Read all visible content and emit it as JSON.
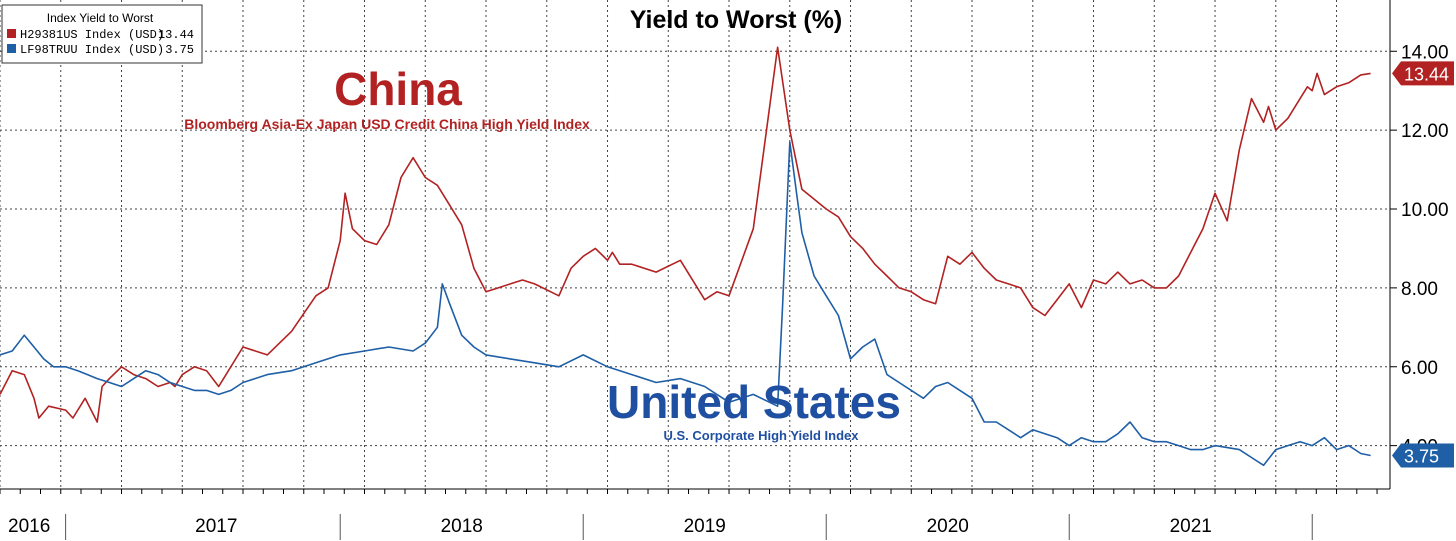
{
  "chart_data": {
    "type": "line",
    "title": "Yield to Worst (%)",
    "legend_title": "Index Yield to Worst",
    "legend_position": "top-left",
    "ylim": [
      2.9,
      15.3
    ],
    "y_ticks": [
      {
        "value": 14,
        "label": "14.00"
      },
      {
        "value": 12,
        "label": "12.00"
      },
      {
        "value": 10,
        "label": "10.00"
      },
      {
        "value": 8,
        "label": "8.00"
      },
      {
        "value": 6,
        "label": "6.00"
      },
      {
        "value": 4,
        "label": "4.00"
      }
    ],
    "xlim": [
      2016.0,
      2021.72
    ],
    "year_labels": [
      {
        "label": "2016",
        "center": 2016.12
      },
      {
        "label": "2017",
        "center": 2016.89
      },
      {
        "label": "2018",
        "center": 2017.9
      },
      {
        "label": "2019",
        "center": 2018.9
      },
      {
        "label": "2020",
        "center": 2019.9
      },
      {
        "label": "2021",
        "center": 2020.9
      }
    ],
    "year_boundaries": [
      2016.27,
      2017.4,
      2018.4,
      2019.4,
      2020.4,
      2021.4
    ],
    "grid": true,
    "series": [
      {
        "name": "H29381US Index (USD)",
        "last_value": "13.44",
        "color": "#b22222",
        "x": [
          2016.0,
          2016.05,
          2016.1,
          2016.14,
          2016.16,
          2016.2,
          2016.27,
          2016.3,
          2016.35,
          2016.4,
          2016.42,
          2016.45,
          2016.5,
          2016.55,
          2016.6,
          2016.65,
          2016.7,
          2016.72,
          2016.75,
          2016.8,
          2016.85,
          2016.9,
          2017.0,
          2017.1,
          2017.2,
          2017.3,
          2017.35,
          2017.4,
          2017.42,
          2017.45,
          2017.5,
          2017.55,
          2017.6,
          2017.65,
          2017.7,
          2017.75,
          2017.8,
          2017.85,
          2017.9,
          2017.95,
          2018.0,
          2018.05,
          2018.1,
          2018.15,
          2018.2,
          2018.3,
          2018.35,
          2018.4,
          2018.45,
          2018.5,
          2018.52,
          2018.55,
          2018.6,
          2018.7,
          2018.8,
          2018.9,
          2018.95,
          2019.0,
          2019.1,
          2019.2,
          2019.25,
          2019.3,
          2019.4,
          2019.45,
          2019.5,
          2019.55,
          2019.6,
          2019.65,
          2019.7,
          2019.75,
          2019.8,
          2019.85,
          2019.9,
          2019.95,
          2020.0,
          2020.05,
          2020.1,
          2020.15,
          2020.2,
          2020.25,
          2020.3,
          2020.35,
          2020.4,
          2020.45,
          2020.5,
          2020.55,
          2020.6,
          2020.65,
          2020.7,
          2020.75,
          2020.8,
          2020.85,
          2020.9,
          2020.95,
          2021.0,
          2021.05,
          2021.1,
          2021.15,
          2021.2,
          2021.22,
          2021.25,
          2021.3,
          2021.35,
          2021.38,
          2021.4,
          2021.42,
          2021.45,
          2021.5,
          2021.55,
          2021.6,
          2021.64
        ],
        "values": [
          5.3,
          5.9,
          5.8,
          5.2,
          4.7,
          5.0,
          4.9,
          4.7,
          5.2,
          4.6,
          5.5,
          5.7,
          6.0,
          5.8,
          5.7,
          5.5,
          5.6,
          5.5,
          5.8,
          6.0,
          5.9,
          5.5,
          6.5,
          6.3,
          6.9,
          7.8,
          8.0,
          9.2,
          10.4,
          9.5,
          9.2,
          9.1,
          9.6,
          10.8,
          11.3,
          10.8,
          10.6,
          10.1,
          9.6,
          8.5,
          7.9,
          8.0,
          8.1,
          8.2,
          8.1,
          7.8,
          8.5,
          8.8,
          9.0,
          8.7,
          8.9,
          8.6,
          8.6,
          8.4,
          8.7,
          7.7,
          7.9,
          7.8,
          9.5,
          14.1,
          12.0,
          10.5,
          10.0,
          9.8,
          9.3,
          9.0,
          8.6,
          8.3,
          8.0,
          7.9,
          7.7,
          7.6,
          8.8,
          8.6,
          8.9,
          8.5,
          8.2,
          8.1,
          8.0,
          7.5,
          7.3,
          7.7,
          8.1,
          7.5,
          8.2,
          8.1,
          8.4,
          8.1,
          8.2,
          8.0,
          8.0,
          8.3,
          8.9,
          9.5,
          10.4,
          9.7,
          11.5,
          12.8,
          12.2,
          12.6,
          12.0,
          12.3,
          12.8,
          13.1,
          13.0,
          13.44,
          12.9,
          13.1,
          13.2,
          13.4,
          13.44
        ]
      },
      {
        "name": "LF98TRUU Index (USD)",
        "last_value": "3.75",
        "color": "#1f5fa6",
        "x": [
          2016.0,
          2016.05,
          2016.1,
          2016.14,
          2016.18,
          2016.22,
          2016.27,
          2016.32,
          2016.36,
          2016.4,
          2016.45,
          2016.5,
          2016.55,
          2016.6,
          2016.65,
          2016.7,
          2016.75,
          2016.8,
          2016.85,
          2016.9,
          2016.95,
          2017.0,
          2017.1,
          2017.2,
          2017.3,
          2017.4,
          2017.5,
          2017.6,
          2017.7,
          2017.75,
          2017.8,
          2017.82,
          2017.85,
          2017.9,
          2017.95,
          2018.0,
          2018.1,
          2018.2,
          2018.3,
          2018.4,
          2018.5,
          2018.6,
          2018.7,
          2018.8,
          2018.9,
          2018.95,
          2019.0,
          2019.1,
          2019.2,
          2019.22,
          2019.25,
          2019.28,
          2019.3,
          2019.35,
          2019.4,
          2019.45,
          2019.5,
          2019.55,
          2019.6,
          2019.65,
          2019.7,
          2019.75,
          2019.8,
          2019.85,
          2019.9,
          2019.95,
          2020.0,
          2020.05,
          2020.1,
          2020.15,
          2020.2,
          2020.25,
          2020.3,
          2020.35,
          2020.4,
          2020.45,
          2020.5,
          2020.55,
          2020.6,
          2020.65,
          2020.7,
          2020.75,
          2020.8,
          2020.85,
          2020.9,
          2020.95,
          2021.0,
          2021.05,
          2021.1,
          2021.15,
          2021.2,
          2021.25,
          2021.3,
          2021.35,
          2021.4,
          2021.45,
          2021.5,
          2021.55,
          2021.6,
          2021.64
        ],
        "values": [
          6.3,
          6.4,
          6.8,
          6.5,
          6.2,
          6.0,
          6.0,
          5.9,
          5.8,
          5.7,
          5.6,
          5.5,
          5.7,
          5.9,
          5.8,
          5.6,
          5.5,
          5.4,
          5.4,
          5.3,
          5.4,
          5.6,
          5.8,
          5.9,
          6.1,
          6.3,
          6.4,
          6.5,
          6.4,
          6.6,
          7.0,
          8.1,
          7.6,
          6.8,
          6.5,
          6.3,
          6.2,
          6.1,
          6.0,
          6.3,
          6.0,
          5.8,
          5.6,
          5.7,
          5.5,
          5.3,
          5.1,
          5.3,
          5.0,
          7.5,
          11.7,
          10.3,
          9.4,
          8.3,
          7.8,
          7.3,
          6.2,
          6.5,
          6.7,
          5.8,
          5.6,
          5.4,
          5.2,
          5.5,
          5.6,
          5.4,
          5.2,
          4.6,
          4.6,
          4.4,
          4.2,
          4.4,
          4.3,
          4.2,
          4.0,
          4.2,
          4.1,
          4.1,
          4.3,
          4.6,
          4.2,
          4.1,
          4.1,
          4.0,
          3.9,
          3.9,
          4.0,
          3.95,
          3.9,
          3.7,
          3.5,
          3.9,
          4.0,
          4.1,
          4.0,
          4.2,
          3.9,
          4.0,
          3.8,
          3.75
        ]
      }
    ],
    "annotations": {
      "china_title": "China",
      "china_subtitle": "Bloomberg Asia-Ex Japan USD Credit China High Yield Index",
      "us_title": "United States",
      "us_subtitle": "U.S. Corporate High Yield Index"
    }
  }
}
